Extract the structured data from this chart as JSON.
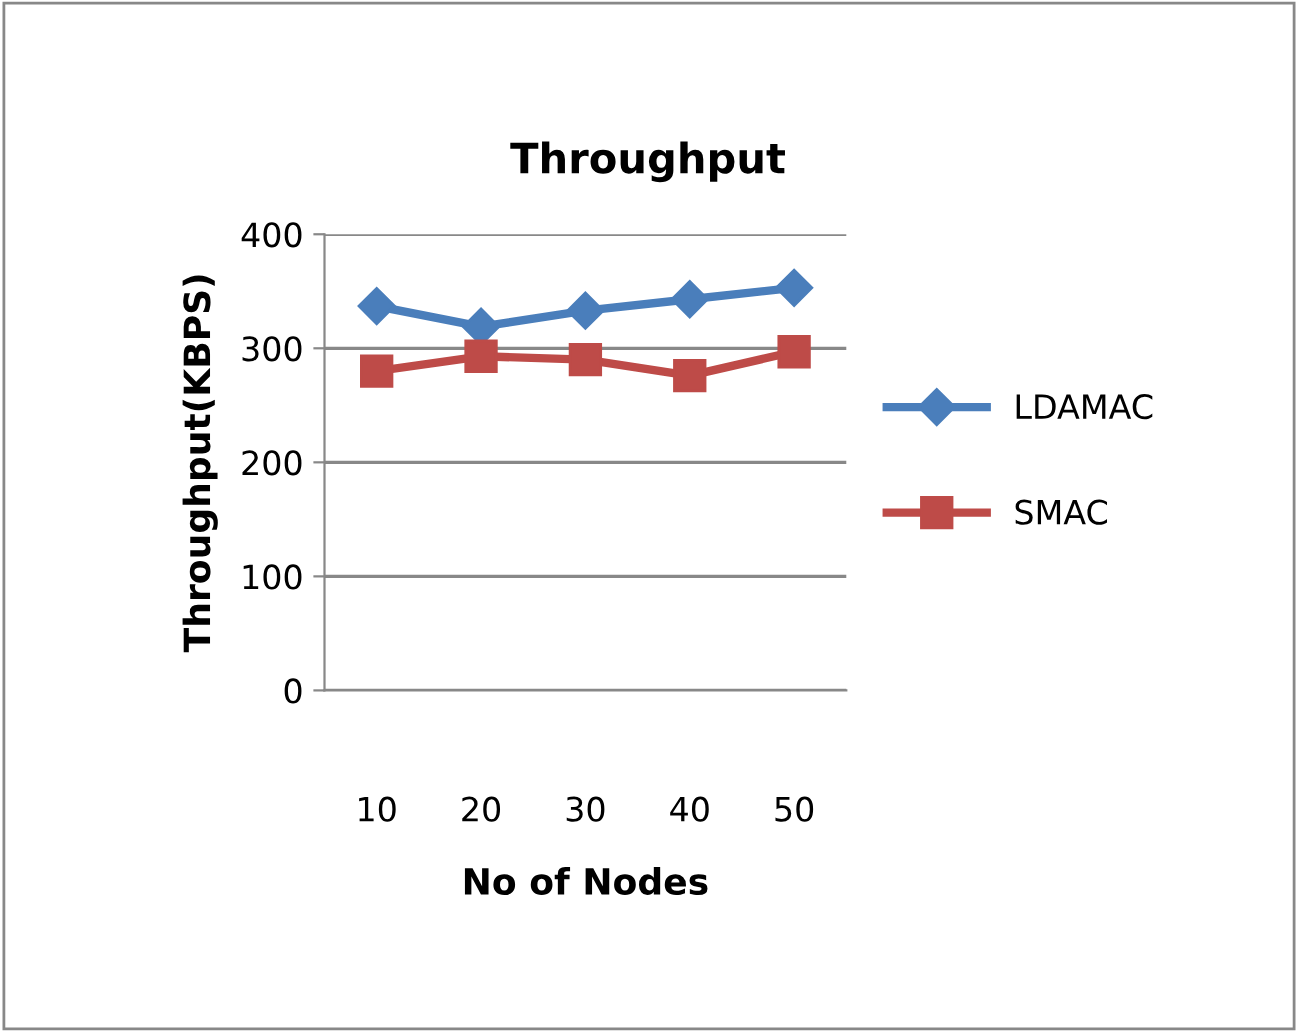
{
  "chart_data": {
    "type": "line",
    "title": "Throughput",
    "xlabel": "No of Nodes",
    "ylabel": "Throughput(KBPS)",
    "categories": [
      "10",
      "20",
      "30",
      "40",
      "50"
    ],
    "series": [
      {
        "name": "LDAMAC",
        "color": "#4a7ebb",
        "values": [
          337,
          319,
          333,
          343,
          353
        ],
        "marker": "diamond"
      },
      {
        "name": "SMAC",
        "color": "#be4b48",
        "values": [
          280,
          293,
          290,
          276,
          297
        ],
        "marker": "square"
      }
    ],
    "ylim": [
      0,
      400
    ],
    "yticks": [
      0,
      100,
      200,
      300,
      400
    ],
    "grid": "y",
    "legend": "right",
    "line_style": "solid"
  }
}
